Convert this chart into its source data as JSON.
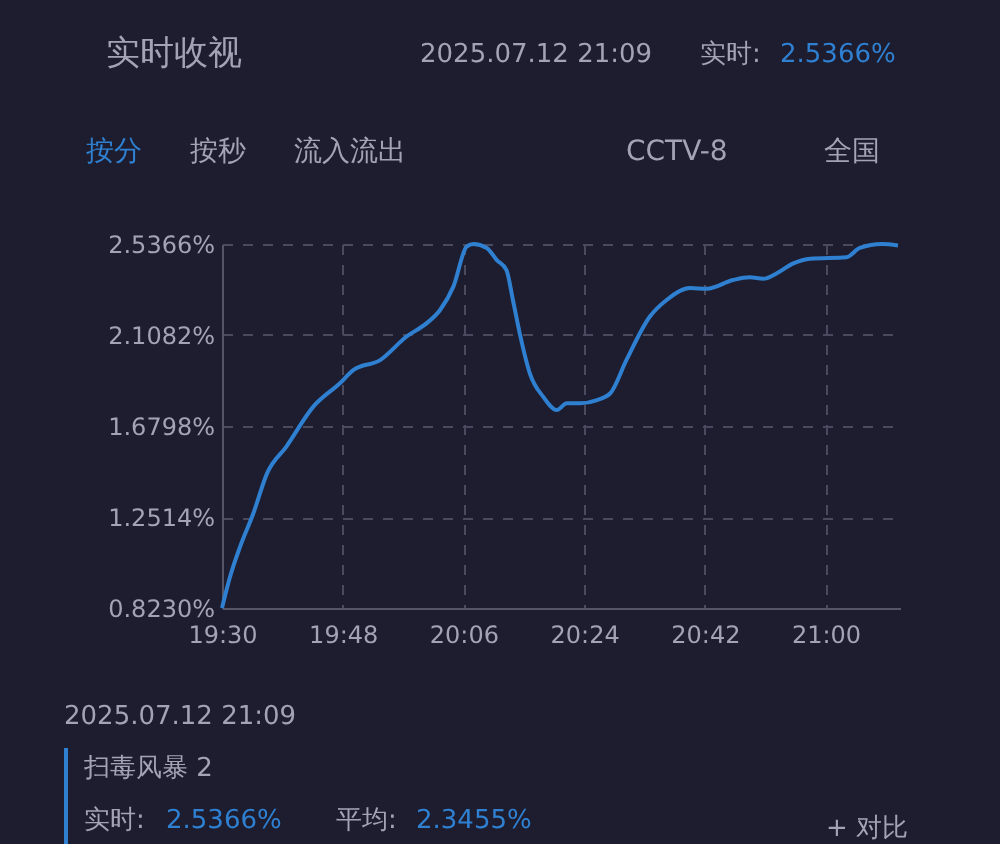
{
  "chart_data": {
    "type": "line",
    "x": [
      19.5,
      19.52,
      19.545,
      19.578,
      19.612,
      19.66,
      19.727,
      19.793,
      19.827,
      19.893,
      19.958,
      20.008,
      20.042,
      20.075,
      20.108,
      20.125,
      20.158,
      20.183,
      20.207,
      20.223,
      20.24,
      20.265,
      20.298,
      20.332,
      20.357,
      20.39,
      20.432,
      20.465,
      20.505,
      20.563,
      20.605,
      20.663,
      20.705,
      20.77,
      20.812,
      20.845,
      20.878,
      20.92,
      20.962,
      21.052,
      21.085,
      21.14,
      21.18
    ],
    "series": [
      {
        "color": "#2f80d1",
        "values": [
          0.823,
          0.97,
          1.112,
          1.269,
          1.457,
          1.583,
          1.771,
          1.881,
          1.944,
          1.99,
          2.1,
          2.163,
          2.226,
          2.336,
          2.524,
          2.5366,
          2.518,
          2.461,
          2.414,
          2.273,
          2.116,
          1.928,
          1.818,
          1.755,
          1.787,
          1.787,
          1.802,
          1.834,
          1.99,
          2.194,
          2.273,
          2.329,
          2.326,
          2.367,
          2.38,
          2.373,
          2.398,
          2.445,
          2.467,
          2.474,
          2.518,
          2.5366,
          2.53
        ]
      }
    ],
    "xlim": [
      19.5,
      21.185
    ],
    "xticks": [
      {
        "value": 19.5,
        "label": "19:30"
      },
      {
        "value": 19.8,
        "label": "19:48"
      },
      {
        "value": 20.1,
        "label": "20:06"
      },
      {
        "value": 20.4,
        "label": "20:24"
      },
      {
        "value": 20.7,
        "label": "20:42"
      },
      {
        "value": 21.0,
        "label": "21:00"
      }
    ],
    "ylim": [
      0.823,
      2.5366
    ],
    "yticks": [
      {
        "value": 0.823,
        "label": "0.8230%"
      },
      {
        "value": 1.2514,
        "label": "1.2514%"
      },
      {
        "value": 1.6798,
        "label": "1.6798%"
      },
      {
        "value": 2.1082,
        "label": "2.1082%"
      },
      {
        "value": 2.5366,
        "label": "2.5366%"
      }
    ],
    "grid": true,
    "line_style": "solid",
    "annotations": [
      "实时收视",
      "2025.07.12 21:09",
      "实时:",
      "2.5366%",
      "按分",
      "按秒",
      "流入流出",
      "CCTV-8",
      "全国",
      "2025.07.12 21:09",
      "扫毒风暴 2",
      "实时:",
      "2.5366%",
      "平均:",
      "2.3455%",
      "+ 对比"
    ]
  }
}
